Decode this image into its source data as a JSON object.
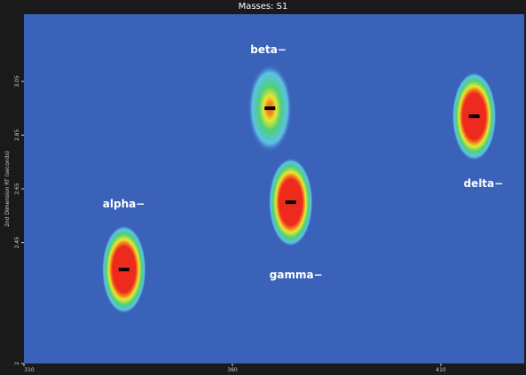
{
  "window_title": "Masses: S1",
  "colors": {
    "background": "#3a62b8",
    "frame": "#1a1a1a",
    "apex_marker": "#000000"
  },
  "chart_data": {
    "type": "heatmap",
    "title": "Masses: S1",
    "xlabel": "",
    "ylabel": "2nd Dimension RT (seconds)",
    "xlim": [
      310,
      430
    ],
    "ylim": [
      2.0,
      3.3
    ],
    "x_ticks": [
      "310",
      "360",
      "410"
    ],
    "y_ticks": [
      "2",
      "2.45",
      "2.65",
      "2.85",
      "3.05"
    ],
    "colormap": [
      "#3a62b8",
      "#5bc0e8",
      "#4fd07a",
      "#e8e830",
      "#f08020",
      "#ee2a1f"
    ],
    "peaks": [
      {
        "label": "alpha",
        "x": 334,
        "y": 2.35,
        "intensity": 1.0
      },
      {
        "label": "beta",
        "x": 369,
        "y": 2.95,
        "intensity": 0.55
      },
      {
        "label": "gamma",
        "x": 374,
        "y": 2.6,
        "intensity": 1.0
      },
      {
        "label": "delta",
        "x": 418,
        "y": 2.92,
        "intensity": 1.0
      }
    ]
  }
}
